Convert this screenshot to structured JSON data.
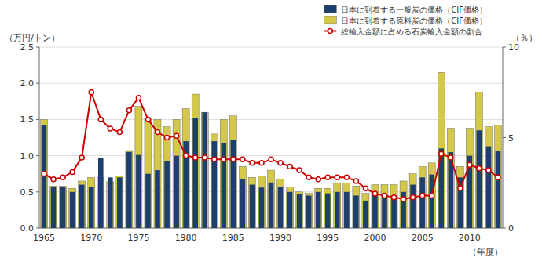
{
  "chart_data": {
    "type": "bar",
    "xlabel": "（年度）",
    "ylabel": "（万円/トン）",
    "y2label": "（％）",
    "categories": [
      "1965",
      null,
      null,
      null,
      null,
      "1970",
      null,
      null,
      null,
      null,
      "1975",
      null,
      null,
      null,
      null,
      "1980",
      null,
      null,
      null,
      null,
      "1985",
      null,
      null,
      null,
      null,
      "1990",
      null,
      null,
      null,
      null,
      "1995",
      null,
      null,
      null,
      null,
      "2000",
      null,
      null,
      null,
      null,
      "2005",
      null,
      null,
      null,
      null,
      "2010",
      null,
      null,
      null
    ],
    "series": [
      {
        "name": "日本に到着する一般炭の価格（CIF価格）",
        "type": "bar",
        "color": "#1c3f6e",
        "values": [
          1.42,
          0.57,
          0.57,
          0.5,
          0.6,
          0.57,
          0.97,
          0.7,
          0.7,
          1.05,
          1.01,
          0.75,
          0.8,
          0.92,
          1.0,
          1.2,
          1.52,
          1.6,
          1.2,
          1.18,
          1.22,
          0.68,
          0.6,
          0.56,
          0.63,
          0.57,
          0.5,
          0.47,
          0.45,
          0.5,
          0.48,
          0.5,
          0.5,
          0.45,
          0.38,
          0.46,
          0.47,
          0.45,
          0.5,
          0.6,
          0.7,
          0.74,
          1.1,
          1.05,
          0.7,
          1.0,
          1.35,
          1.13,
          1.06
        ]
      },
      {
        "name": "日本に到着する原料炭の価格（CIF価格）",
        "type": "bar",
        "color": "#d4c84a",
        "values": [
          1.5,
          0.58,
          0.58,
          0.55,
          0.65,
          0.7,
          0.7,
          0.64,
          0.72,
          1.06,
          1.68,
          1.52,
          1.5,
          1.4,
          1.5,
          1.65,
          1.85,
          1.6,
          1.3,
          1.5,
          1.55,
          0.85,
          0.7,
          0.72,
          0.8,
          0.68,
          0.57,
          0.5,
          0.48,
          0.55,
          0.55,
          0.62,
          0.62,
          0.58,
          0.48,
          0.6,
          0.6,
          0.6,
          0.65,
          0.75,
          0.85,
          0.9,
          2.15,
          1.38,
          0.85,
          1.38,
          1.88,
          1.4,
          1.42
        ]
      },
      {
        "name": "総輸入金額に占める石炭輸入金額の割合",
        "type": "line",
        "axis": "y2",
        "color": "#cc0000",
        "marker": "circle",
        "line_style": "solid",
        "values": [
          3.0,
          2.7,
          2.8,
          3.1,
          3.9,
          7.5,
          6.0,
          5.5,
          5.3,
          6.5,
          7.2,
          6.0,
          5.3,
          5.0,
          5.1,
          4.0,
          3.9,
          3.9,
          3.8,
          3.8,
          3.8,
          3.8,
          3.6,
          3.6,
          3.8,
          3.6,
          3.4,
          3.2,
          2.8,
          2.7,
          2.8,
          2.8,
          2.8,
          2.6,
          2.2,
          1.9,
          1.8,
          1.7,
          1.6,
          1.7,
          1.8,
          1.8,
          4.1,
          3.9,
          2.2,
          3.5,
          3.3,
          3.2,
          2.8
        ]
      }
    ],
    "ylim": [
      0,
      2.5
    ],
    "yticks": [
      {
        "value": 0,
        "label": "0.0"
      },
      0.5,
      {
        "value": 1,
        "label": "1.0"
      },
      1.5,
      {
        "value": 2,
        "label": "2.0"
      },
      2.5
    ],
    "y2lim": [
      0,
      10
    ],
    "y2ticks": [
      0,
      5,
      10
    ],
    "grid": true,
    "legend": "upper right"
  }
}
